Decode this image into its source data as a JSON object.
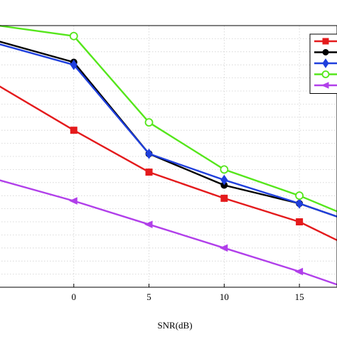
{
  "chart_data": {
    "type": "line",
    "title": "",
    "xlabel": "SNR(dB)",
    "ylabel": "",
    "xlim": [
      -5,
      17.5
    ],
    "ylim": [
      0,
      1
    ],
    "x_ticks": [
      0,
      5,
      10,
      15
    ],
    "x_tick_labels": [
      "0",
      "5",
      "10",
      "15"
    ],
    "grid": "dotted",
    "legend_position": "top-right",
    "x": [
      -5,
      0,
      5,
      10,
      15,
      17.5
    ],
    "series": [
      {
        "color": "#e41a1c",
        "marker": "square",
        "values": [
          0.77,
          0.6,
          0.44,
          0.34,
          0.25,
          0.18
        ]
      },
      {
        "color": "#000000",
        "marker": "circle-filled",
        "values": [
          0.94,
          0.86,
          0.51,
          0.39,
          0.32,
          0.27
        ]
      },
      {
        "color": "#1f3fdd",
        "marker": "diamond",
        "values": [
          0.93,
          0.85,
          0.51,
          0.41,
          0.32,
          0.27
        ]
      },
      {
        "color": "#55e61b",
        "marker": "circle-open",
        "values": [
          1.0,
          0.96,
          0.63,
          0.45,
          0.35,
          0.29
        ]
      },
      {
        "color": "#b13fea",
        "marker": "triangle-left",
        "values": [
          0.41,
          0.33,
          0.24,
          0.15,
          0.06,
          0.01
        ]
      }
    ]
  }
}
